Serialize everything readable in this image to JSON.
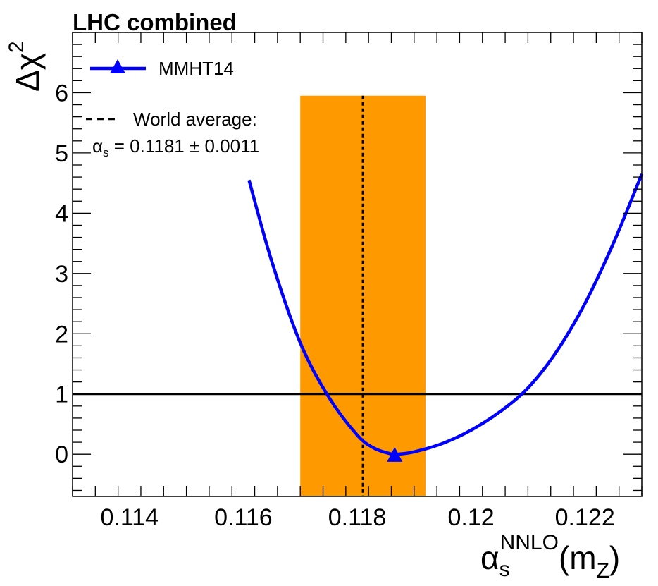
{
  "chart_data": {
    "type": "line",
    "title": "LHC combined",
    "xlabel": {
      "symbol": "α",
      "subscript": "s",
      "superscript": "NNLO",
      "suffix": "(m",
      "suffix_subscript": "Z",
      "suffix_close": ")"
    },
    "ylabel": {
      "symbol": "Δχ",
      "superscript": "2"
    },
    "xlim": [
      0.113,
      0.123
    ],
    "ylim": [
      -0.7,
      7.0
    ],
    "x_ticks": [
      0.114,
      0.116,
      0.118,
      0.12,
      0.122
    ],
    "x_tick_labels": [
      "0.114",
      "0.116",
      "0.118",
      "0.12",
      "0.122"
    ],
    "y_ticks": [
      0,
      1,
      2,
      3,
      4,
      5,
      6
    ],
    "y_tick_labels": [
      "0",
      "1",
      "2",
      "3",
      "4",
      "5",
      "6"
    ],
    "series": [
      {
        "name": "MMHT14",
        "color": "#0000ff",
        "x": [
          0.1161,
          0.1165,
          0.117,
          0.1175,
          0.118,
          0.1183,
          0.1186,
          0.1187,
          0.119,
          0.1195,
          0.12,
          0.1205,
          0.121,
          0.1215,
          0.122,
          0.1225,
          0.123
        ],
        "y": [
          4.55,
          3.2,
          1.85,
          0.95,
          0.32,
          0.1,
          0.005,
          0.0,
          0.04,
          0.18,
          0.4,
          0.7,
          1.1,
          1.7,
          2.5,
          3.5,
          4.65
        ],
        "marker": {
          "x": 0.11866,
          "y": -0.02,
          "shape": "triangle"
        }
      }
    ],
    "horizontal_line": {
      "y": 1.0,
      "color": "#000000"
    },
    "world_average": {
      "central": 0.1181,
      "uncertainty": 0.0011,
      "band_color": "#ff9900",
      "band_ymax": 5.95,
      "line_style": "dotted"
    },
    "legend": {
      "position": "top-left",
      "entries": [
        {
          "label": "MMHT14",
          "type": "line-marker",
          "color": "#0000ff"
        },
        {
          "label": "World average:",
          "type": "dashed-line",
          "color": "#000000"
        }
      ],
      "annotation": {
        "symbol": "α",
        "subscript": "s",
        "text": " = 0.1181 ± 0.0011"
      }
    }
  }
}
